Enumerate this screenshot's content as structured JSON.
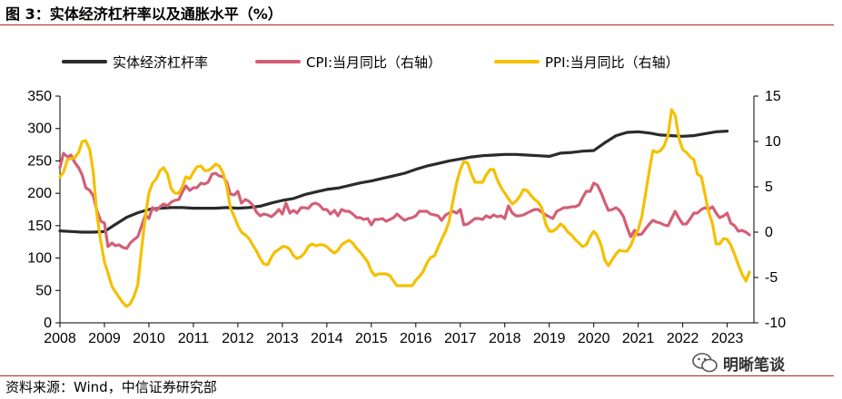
{
  "figure": {
    "title": "图 3：实体经济杠杆率以及通胀水平（%）",
    "source": "资料来源：Wind，中信证券研究部",
    "watermark": "明晰笔谈"
  },
  "colors": {
    "leverage": "#2b2b2b",
    "cpi": "#d35f76",
    "ppi": "#f5c000",
    "rule": "#b22222"
  },
  "chart_data": {
    "type": "line",
    "legend_position": "top",
    "grid": false,
    "x_ticks": [
      "2008",
      "2009",
      "2010",
      "2011",
      "2012",
      "2013",
      "2014",
      "2015",
      "2016",
      "2017",
      "2018",
      "2019",
      "2020",
      "2021",
      "2022",
      "2023"
    ],
    "xlim": [
      2008.0,
      2023.6
    ],
    "left_axis": {
      "ticks": [
        "0",
        "50",
        "100",
        "150",
        "200",
        "250",
        "300",
        "350"
      ],
      "ylim": [
        0,
        350
      ]
    },
    "right_axis": {
      "ticks": [
        "-10",
        "-5",
        "0",
        "5",
        "10",
        "15"
      ],
      "ylim": [
        -10,
        15
      ]
    },
    "series": [
      {
        "name": "实体经济杠杆率",
        "axis": "left",
        "color": "#2b2b2b",
        "x": [
          2008.0,
          2008.25,
          2008.5,
          2008.75,
          2009.0,
          2009.25,
          2009.5,
          2009.75,
          2010.0,
          2010.25,
          2010.5,
          2010.75,
          2011.0,
          2011.25,
          2011.5,
          2011.75,
          2012.0,
          2012.25,
          2012.5,
          2012.75,
          2013.0,
          2013.25,
          2013.5,
          2013.75,
          2014.0,
          2014.25,
          2014.5,
          2014.75,
          2015.0,
          2015.25,
          2015.5,
          2015.75,
          2016.0,
          2016.25,
          2016.5,
          2016.75,
          2017.0,
          2017.25,
          2017.5,
          2017.75,
          2018.0,
          2018.25,
          2018.5,
          2018.75,
          2019.0,
          2019.25,
          2019.5,
          2019.75,
          2020.0,
          2020.25,
          2020.5,
          2020.75,
          2021.0,
          2021.25,
          2021.5,
          2021.75,
          2022.0,
          2022.25,
          2022.5,
          2022.75,
          2023.0
        ],
        "y": [
          142,
          141,
          140,
          140,
          141,
          152,
          163,
          170,
          175,
          177,
          178,
          178,
          177,
          177,
          177,
          178,
          177,
          178,
          180,
          185,
          189,
          192,
          198,
          202,
          206,
          208,
          212,
          216,
          219,
          223,
          227,
          231,
          237,
          242,
          246,
          250,
          253,
          256,
          258,
          259,
          260,
          260,
          259,
          258,
          257,
          262,
          263,
          265,
          266,
          278,
          289,
          294,
          295,
          293,
          290,
          289,
          288,
          289,
          292,
          295,
          296
        ]
      },
      {
        "name": "CPI:当月同比（右轴）",
        "axis": "right",
        "color": "#d35f76",
        "x": [
          2008.0,
          2008.08,
          2008.17,
          2008.25,
          2008.33,
          2008.42,
          2008.5,
          2008.58,
          2008.67,
          2008.75,
          2008.83,
          2008.92,
          2009.0,
          2009.08,
          2009.17,
          2009.25,
          2009.33,
          2009.42,
          2009.5,
          2009.58,
          2009.67,
          2009.75,
          2009.83,
          2009.92,
          2010.0,
          2010.08,
          2010.17,
          2010.25,
          2010.33,
          2010.42,
          2010.5,
          2010.58,
          2010.67,
          2010.75,
          2010.83,
          2010.92,
          2011.0,
          2011.08,
          2011.17,
          2011.25,
          2011.33,
          2011.42,
          2011.5,
          2011.58,
          2011.67,
          2011.75,
          2011.83,
          2011.92,
          2012.0,
          2012.08,
          2012.17,
          2012.25,
          2012.33,
          2012.42,
          2012.5,
          2012.58,
          2012.67,
          2012.75,
          2012.83,
          2012.92,
          2013.0,
          2013.08,
          2013.17,
          2013.25,
          2013.33,
          2013.42,
          2013.5,
          2013.58,
          2013.67,
          2013.75,
          2013.83,
          2013.92,
          2014.0,
          2014.08,
          2014.17,
          2014.25,
          2014.33,
          2014.42,
          2014.5,
          2014.58,
          2014.67,
          2014.75,
          2014.83,
          2014.92,
          2015.0,
          2015.08,
          2015.17,
          2015.25,
          2015.33,
          2015.42,
          2015.5,
          2015.58,
          2015.67,
          2015.75,
          2015.83,
          2015.92,
          2016.0,
          2016.08,
          2016.17,
          2016.25,
          2016.33,
          2016.42,
          2016.5,
          2016.58,
          2016.67,
          2016.75,
          2016.83,
          2016.92,
          2017.0,
          2017.08,
          2017.17,
          2017.25,
          2017.33,
          2017.42,
          2017.5,
          2017.58,
          2017.67,
          2017.75,
          2017.83,
          2017.92,
          2018.0,
          2018.08,
          2018.17,
          2018.25,
          2018.33,
          2018.42,
          2018.5,
          2018.58,
          2018.67,
          2018.75,
          2018.83,
          2018.92,
          2019.0,
          2019.08,
          2019.17,
          2019.25,
          2019.33,
          2019.42,
          2019.5,
          2019.58,
          2019.67,
          2019.75,
          2019.83,
          2019.92,
          2020.0,
          2020.08,
          2020.17,
          2020.25,
          2020.33,
          2020.42,
          2020.5,
          2020.58,
          2020.67,
          2020.75,
          2020.83,
          2020.92,
          2021.0,
          2021.08,
          2021.17,
          2021.25,
          2021.33,
          2021.42,
          2021.5,
          2021.58,
          2021.67,
          2021.75,
          2021.83,
          2021.92,
          2022.0,
          2022.08,
          2022.17,
          2022.25,
          2022.33,
          2022.42,
          2022.5,
          2022.58,
          2022.67,
          2022.75,
          2022.83,
          2022.92,
          2023.0,
          2023.08,
          2023.17,
          2023.25,
          2023.33,
          2023.42,
          2023.5
        ],
        "y": [
          7.1,
          8.7,
          8.3,
          8.5,
          7.7,
          7.1,
          6.3,
          4.9,
          4.6,
          4.0,
          2.4,
          1.2,
          1.0,
          -1.6,
          -1.2,
          -1.5,
          -1.4,
          -1.7,
          -1.8,
          -1.2,
          -0.8,
          -0.5,
          0.6,
          1.9,
          1.5,
          2.7,
          2.4,
          2.8,
          3.1,
          2.9,
          3.3,
          3.5,
          3.6,
          4.4,
          5.1,
          4.6,
          4.9,
          4.9,
          5.4,
          5.3,
          5.5,
          6.4,
          6.5,
          6.2,
          6.1,
          5.5,
          4.2,
          4.1,
          4.5,
          3.2,
          3.6,
          3.4,
          3.0,
          2.2,
          1.8,
          2.0,
          1.9,
          1.7,
          2.0,
          2.5,
          2.0,
          3.2,
          2.1,
          2.4,
          2.1,
          2.7,
          2.7,
          2.6,
          3.1,
          3.2,
          3.0,
          2.5,
          2.5,
          2.0,
          2.4,
          1.8,
          2.5,
          2.3,
          2.3,
          2.0,
          1.6,
          1.6,
          1.4,
          1.5,
          0.8,
          1.4,
          1.4,
          1.5,
          1.2,
          1.4,
          1.6,
          2.0,
          1.6,
          1.3,
          1.5,
          1.6,
          1.8,
          2.3,
          2.3,
          2.3,
          2.0,
          1.9,
          1.8,
          1.3,
          1.9,
          2.1,
          2.3,
          2.1,
          2.5,
          0.8,
          0.9,
          1.2,
          1.5,
          1.5,
          1.4,
          1.8,
          1.6,
          1.9,
          1.7,
          1.8,
          1.5,
          2.9,
          2.1,
          1.8,
          1.8,
          1.9,
          2.1,
          2.3,
          2.5,
          2.5,
          2.2,
          1.9,
          1.7,
          1.5,
          2.3,
          2.5,
          2.7,
          2.7,
          2.8,
          2.8,
          3.0,
          3.8,
          4.5,
          4.5,
          5.4,
          5.2,
          4.3,
          3.3,
          2.4,
          2.5,
          2.7,
          2.4,
          1.7,
          0.5,
          -0.5,
          0.2,
          -0.3,
          -0.2,
          0.4,
          0.9,
          1.3,
          1.1,
          1.0,
          0.8,
          0.7,
          1.5,
          2.3,
          1.5,
          0.9,
          0.9,
          1.5,
          2.1,
          2.1,
          2.5,
          2.7,
          2.5,
          2.8,
          2.1,
          1.6,
          1.8,
          2.1,
          1.0,
          0.7,
          0.1,
          0.2,
          0.0,
          -0.3
        ]
      },
      {
        "name": "PPI:当月同比（右轴）",
        "axis": "right",
        "color": "#f5c000",
        "x": [
          2008.0,
          2008.08,
          2008.17,
          2008.25,
          2008.33,
          2008.42,
          2008.5,
          2008.58,
          2008.67,
          2008.75,
          2008.83,
          2008.92,
          2009.0,
          2009.08,
          2009.17,
          2009.25,
          2009.33,
          2009.42,
          2009.5,
          2009.58,
          2009.67,
          2009.75,
          2009.83,
          2009.92,
          2010.0,
          2010.08,
          2010.17,
          2010.25,
          2010.33,
          2010.42,
          2010.5,
          2010.58,
          2010.67,
          2010.75,
          2010.83,
          2010.92,
          2011.0,
          2011.08,
          2011.17,
          2011.25,
          2011.33,
          2011.42,
          2011.5,
          2011.58,
          2011.67,
          2011.75,
          2011.83,
          2011.92,
          2012.0,
          2012.08,
          2012.17,
          2012.25,
          2012.33,
          2012.42,
          2012.5,
          2012.58,
          2012.67,
          2012.75,
          2012.83,
          2012.92,
          2013.0,
          2013.08,
          2013.17,
          2013.25,
          2013.33,
          2013.42,
          2013.5,
          2013.58,
          2013.67,
          2013.75,
          2013.83,
          2013.92,
          2014.0,
          2014.08,
          2014.17,
          2014.25,
          2014.33,
          2014.42,
          2014.5,
          2014.58,
          2014.67,
          2014.75,
          2014.83,
          2014.92,
          2015.0,
          2015.08,
          2015.17,
          2015.25,
          2015.33,
          2015.42,
          2015.5,
          2015.58,
          2015.67,
          2015.75,
          2015.83,
          2015.92,
          2016.0,
          2016.08,
          2016.17,
          2016.25,
          2016.33,
          2016.42,
          2016.5,
          2016.58,
          2016.67,
          2016.75,
          2016.83,
          2016.92,
          2017.0,
          2017.08,
          2017.17,
          2017.25,
          2017.33,
          2017.42,
          2017.5,
          2017.58,
          2017.67,
          2017.75,
          2017.83,
          2017.92,
          2018.0,
          2018.08,
          2018.17,
          2018.25,
          2018.33,
          2018.42,
          2018.5,
          2018.58,
          2018.67,
          2018.75,
          2018.83,
          2018.92,
          2019.0,
          2019.08,
          2019.17,
          2019.25,
          2019.33,
          2019.42,
          2019.5,
          2019.58,
          2019.67,
          2019.75,
          2019.83,
          2019.92,
          2020.0,
          2020.08,
          2020.17,
          2020.25,
          2020.33,
          2020.42,
          2020.5,
          2020.58,
          2020.67,
          2020.75,
          2020.83,
          2020.92,
          2021.0,
          2021.08,
          2021.17,
          2021.25,
          2021.33,
          2021.42,
          2021.5,
          2021.58,
          2021.67,
          2021.75,
          2021.83,
          2021.92,
          2022.0,
          2022.08,
          2022.17,
          2022.25,
          2022.33,
          2022.42,
          2022.5,
          2022.58,
          2022.67,
          2022.75,
          2022.83,
          2022.92,
          2023.0,
          2023.08,
          2023.17,
          2023.25,
          2023.33,
          2023.42,
          2023.5
        ],
        "y": [
          6.1,
          6.6,
          8.0,
          8.1,
          8.2,
          8.8,
          10.0,
          10.1,
          9.1,
          6.6,
          2.0,
          -1.1,
          -3.3,
          -4.5,
          -6.0,
          -6.6,
          -7.2,
          -7.8,
          -8.2,
          -7.9,
          -7.0,
          -5.8,
          -2.1,
          1.7,
          4.3,
          5.4,
          5.9,
          6.8,
          7.1,
          6.4,
          4.8,
          4.3,
          4.3,
          5.0,
          6.1,
          5.9,
          6.6,
          7.2,
          7.3,
          6.8,
          6.8,
          7.1,
          7.5,
          7.3,
          6.5,
          5.0,
          2.7,
          1.7,
          0.7,
          0.0,
          -0.3,
          -0.7,
          -1.4,
          -2.1,
          -2.9,
          -3.5,
          -3.6,
          -2.8,
          -2.2,
          -1.9,
          -1.6,
          -1.6,
          -1.9,
          -2.6,
          -2.9,
          -2.7,
          -2.3,
          -1.6,
          -1.3,
          -1.5,
          -1.4,
          -1.4,
          -1.6,
          -2.0,
          -2.3,
          -2.0,
          -1.4,
          -1.1,
          -0.9,
          -1.2,
          -1.8,
          -2.2,
          -2.7,
          -3.3,
          -4.3,
          -4.8,
          -4.6,
          -4.6,
          -4.6,
          -4.8,
          -5.4,
          -5.9,
          -5.9,
          -5.9,
          -5.9,
          -5.9,
          -5.3,
          -4.9,
          -4.3,
          -3.4,
          -2.8,
          -2.6,
          -1.7,
          -0.8,
          0.1,
          1.2,
          3.3,
          5.5,
          6.9,
          7.8,
          7.6,
          6.4,
          5.5,
          5.5,
          5.5,
          6.3,
          6.9,
          6.9,
          5.8,
          4.9,
          4.3,
          3.7,
          3.1,
          3.4,
          3.9,
          4.7,
          4.6,
          4.1,
          3.6,
          3.3,
          2.7,
          0.9,
          0.1,
          0.1,
          0.4,
          0.9,
          0.6,
          0.0,
          -0.3,
          -0.8,
          -1.2,
          -1.6,
          -1.4,
          -0.5,
          0.1,
          -0.4,
          -1.5,
          -3.1,
          -3.7,
          -3.0,
          -2.4,
          -2.0,
          -2.1,
          -2.1,
          -1.5,
          -0.4,
          0.3,
          1.7,
          4.4,
          6.8,
          9.0,
          8.8,
          9.0,
          9.5,
          10.7,
          13.5,
          12.9,
          10.3,
          9.1,
          8.8,
          8.3,
          8.0,
          6.4,
          6.1,
          4.2,
          2.3,
          0.9,
          -1.3,
          -1.3,
          -0.7,
          -0.8,
          -1.4,
          -2.5,
          -3.6,
          -4.6,
          -5.4,
          -4.4
        ]
      }
    ]
  }
}
